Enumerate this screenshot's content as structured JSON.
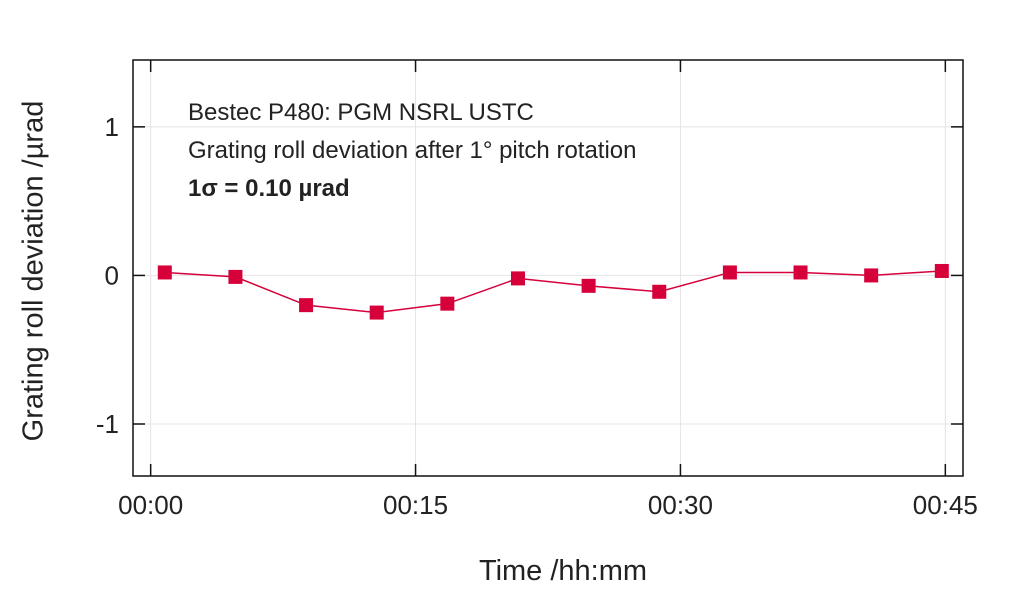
{
  "chart_data": {
    "type": "line",
    "x_axis": {
      "label": "Time /hh:mm",
      "ticks": [
        {
          "value": 0,
          "label": "00:00"
        },
        {
          "value": 15,
          "label": "00:15"
        },
        {
          "value": 30,
          "label": "00:30"
        },
        {
          "value": 45,
          "label": "00:45"
        }
      ],
      "range": [
        -1,
        46
      ]
    },
    "y_axis": {
      "label": "Grating roll deviation /µrad",
      "ticks": [
        {
          "value": 1,
          "label": "1"
        },
        {
          "value": 0,
          "label": "0"
        },
        {
          "value": -1,
          "label": "-1"
        }
      ],
      "range": [
        -1.35,
        1.45
      ]
    },
    "annotations": [
      {
        "text": "Bestec P480: PGM NSRL USTC",
        "bold": false
      },
      {
        "text": "Grating roll deviation after 1° pitch rotation",
        "bold": false
      },
      {
        "text": "1σ = 0.10 µrad",
        "bold": true
      }
    ],
    "grid": true,
    "series": [
      {
        "color": "#d6003a",
        "marker": "square",
        "points": [
          {
            "x": 0.8,
            "y": 0.02
          },
          {
            "x": 4.8,
            "y": -0.01
          },
          {
            "x": 8.8,
            "y": -0.2
          },
          {
            "x": 12.8,
            "y": -0.25
          },
          {
            "x": 16.8,
            "y": -0.19
          },
          {
            "x": 20.8,
            "y": -0.02
          },
          {
            "x": 24.8,
            "y": -0.07
          },
          {
            "x": 28.8,
            "y": -0.11
          },
          {
            "x": 32.8,
            "y": 0.02
          },
          {
            "x": 36.8,
            "y": 0.02
          },
          {
            "x": 40.8,
            "y": 0.0
          },
          {
            "x": 44.8,
            "y": 0.03
          }
        ]
      }
    ]
  }
}
